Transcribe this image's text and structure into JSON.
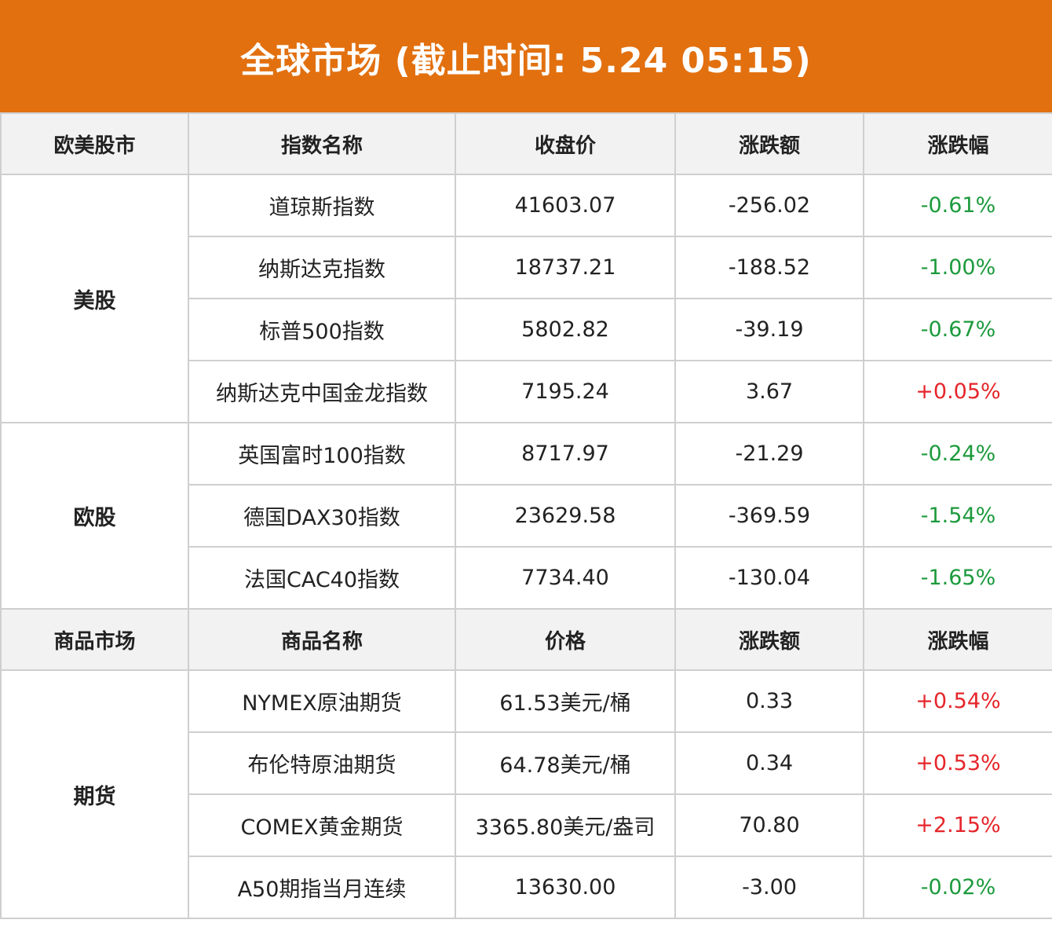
{
  "banner": {
    "title": "全球市场 (截止时间: 5.24 05:15)",
    "bg_color": "#e2700f"
  },
  "colors": {
    "up": "#e5252a",
    "down": "#1c9a3c"
  },
  "stock_section": {
    "headers": [
      "欧美股市",
      "指数名称",
      "收盘价",
      "涨跌额",
      "涨跌幅"
    ],
    "groups": [
      {
        "label": "美股",
        "rows": [
          {
            "name": "道琼斯指数",
            "price": "41603.07",
            "change": "-256.02",
            "pct": "-0.61%",
            "dir": "down"
          },
          {
            "name": "纳斯达克指数",
            "price": "18737.21",
            "change": "-188.52",
            "pct": "-1.00%",
            "dir": "down"
          },
          {
            "name": "标普500指数",
            "price": "5802.82",
            "change": "-39.19",
            "pct": "-0.67%",
            "dir": "down"
          },
          {
            "name": "纳斯达克中国金龙指数",
            "price": "7195.24",
            "change": "3.67",
            "pct": "+0.05%",
            "dir": "up"
          }
        ]
      },
      {
        "label": "欧股",
        "rows": [
          {
            "name": "英国富时100指数",
            "price": "8717.97",
            "change": "-21.29",
            "pct": "-0.24%",
            "dir": "down"
          },
          {
            "name": "德国DAX30指数",
            "price": "23629.58",
            "change": "-369.59",
            "pct": "-1.54%",
            "dir": "down"
          },
          {
            "name": "法国CAC40指数",
            "price": "7734.40",
            "change": "-130.04",
            "pct": "-1.65%",
            "dir": "down"
          }
        ]
      }
    ]
  },
  "commodity_section": {
    "headers": [
      "商品市场",
      "商品名称",
      "价格",
      "涨跌额",
      "涨跌幅"
    ],
    "groups": [
      {
        "label": "期货",
        "rows": [
          {
            "name": "NYMEX原油期货",
            "price": "61.53美元/桶",
            "change": "0.33",
            "pct": "+0.54%",
            "dir": "up"
          },
          {
            "name": "布伦特原油期货",
            "price": "64.78美元/桶",
            "change": "0.34",
            "pct": "+0.53%",
            "dir": "up"
          },
          {
            "name": "COMEX黄金期货",
            "price": "3365.80美元/盎司",
            "change": "70.80",
            "pct": "+2.15%",
            "dir": "up"
          },
          {
            "name": "A50期指当月连续",
            "price": "13630.00",
            "change": "-3.00",
            "pct": "-0.02%",
            "dir": "down"
          }
        ]
      }
    ]
  }
}
